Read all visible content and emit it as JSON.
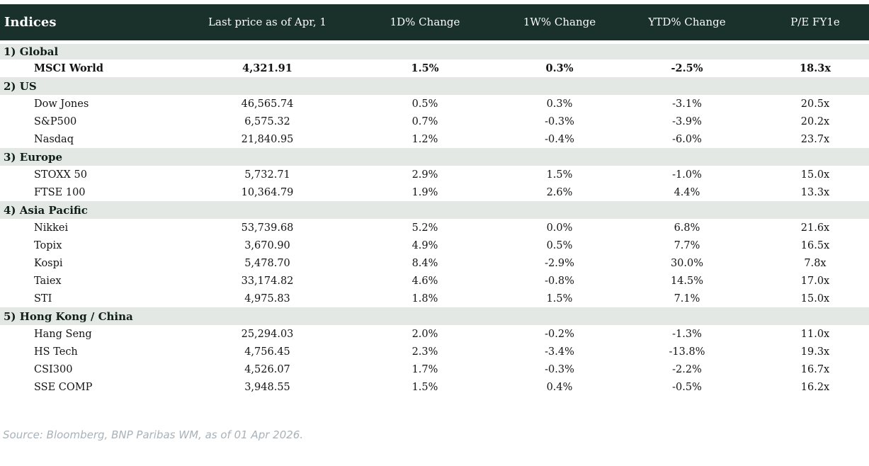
{
  "chart_data": {
    "type": "table",
    "title": "Indices",
    "first_column_header": "Indices",
    "columns": [
      "Last price as of Apr, 1",
      "1D% Change",
      "1W% Change",
      "YTD% Change",
      "P/E FY1e"
    ],
    "sections": [
      {
        "label": "1) Global",
        "rows": [
          {
            "name": "MSCI World",
            "bold": true,
            "price": "4,321.91",
            "chg_1d": {
              "v": "1.5%",
              "dir": "pos"
            },
            "chg_1w": {
              "v": "0.3%",
              "dir": "pos"
            },
            "chg_ytd": {
              "v": "-2.5%",
              "dir": "neg"
            },
            "pe": "18.3x"
          }
        ]
      },
      {
        "label": "2) US",
        "rows": [
          {
            "name": "Dow Jones",
            "bold": false,
            "price": "46,565.74",
            "chg_1d": {
              "v": "0.5%",
              "dir": "pos"
            },
            "chg_1w": {
              "v": "0.3%",
              "dir": "pos"
            },
            "chg_ytd": {
              "v": "-3.1%",
              "dir": "neg"
            },
            "pe": "20.5x"
          },
          {
            "name": "S&P500",
            "bold": false,
            "price": "6,575.32",
            "chg_1d": {
              "v": "0.7%",
              "dir": "pos"
            },
            "chg_1w": {
              "v": "-0.3%",
              "dir": "neg"
            },
            "chg_ytd": {
              "v": "-3.9%",
              "dir": "neg"
            },
            "pe": "20.2x"
          },
          {
            "name": "Nasdaq",
            "bold": false,
            "price": "21,840.95",
            "chg_1d": {
              "v": "1.2%",
              "dir": "pos"
            },
            "chg_1w": {
              "v": "-0.4%",
              "dir": "neg"
            },
            "chg_ytd": {
              "v": "-6.0%",
              "dir": "neg"
            },
            "pe": "23.7x"
          }
        ]
      },
      {
        "label": "3) Europe",
        "rows": [
          {
            "name": "STOXX 50",
            "bold": false,
            "price": "5,732.71",
            "chg_1d": {
              "v": "2.9%",
              "dir": "pos"
            },
            "chg_1w": {
              "v": "1.5%",
              "dir": "pos"
            },
            "chg_ytd": {
              "v": "-1.0%",
              "dir": "neg"
            },
            "pe": "15.0x"
          },
          {
            "name": "FTSE 100",
            "bold": false,
            "price": "10,364.79",
            "chg_1d": {
              "v": "1.9%",
              "dir": "pos"
            },
            "chg_1w": {
              "v": "2.6%",
              "dir": "pos"
            },
            "chg_ytd": {
              "v": "4.4%",
              "dir": "pos"
            },
            "pe": "13.3x"
          }
        ]
      },
      {
        "label": "4) Asia Pacific",
        "rows": [
          {
            "name": "Nikkei",
            "bold": false,
            "price": "53,739.68",
            "chg_1d": {
              "v": "5.2%",
              "dir": "pos"
            },
            "chg_1w": {
              "v": "0.0%",
              "dir": "neg"
            },
            "chg_ytd": {
              "v": "6.8%",
              "dir": "pos"
            },
            "pe": "21.6x"
          },
          {
            "name": "Topix",
            "bold": false,
            "price": "3,670.90",
            "chg_1d": {
              "v": "4.9%",
              "dir": "pos"
            },
            "chg_1w": {
              "v": "0.5%",
              "dir": "pos"
            },
            "chg_ytd": {
              "v": "7.7%",
              "dir": "pos"
            },
            "pe": "16.5x"
          },
          {
            "name": "Kospi",
            "bold": false,
            "price": "5,478.70",
            "chg_1d": {
              "v": "8.4%",
              "dir": "pos"
            },
            "chg_1w": {
              "v": "-2.9%",
              "dir": "neg"
            },
            "chg_ytd": {
              "v": "30.0%",
              "dir": "pos"
            },
            "pe": "7.8x"
          },
          {
            "name": "Taiex",
            "bold": false,
            "price": "33,174.82",
            "chg_1d": {
              "v": "4.6%",
              "dir": "pos"
            },
            "chg_1w": {
              "v": "-0.8%",
              "dir": "neg"
            },
            "chg_ytd": {
              "v": "14.5%",
              "dir": "pos"
            },
            "pe": "17.0x"
          },
          {
            "name": "STI",
            "bold": false,
            "price": "4,975.83",
            "chg_1d": {
              "v": "1.8%",
              "dir": "pos"
            },
            "chg_1w": {
              "v": "1.5%",
              "dir": "pos"
            },
            "chg_ytd": {
              "v": "7.1%",
              "dir": "pos"
            },
            "pe": "15.0x"
          }
        ]
      },
      {
        "label": "5) Hong Kong / China",
        "rows": [
          {
            "name": "Hang Seng",
            "bold": false,
            "price": "25,294.03",
            "chg_1d": {
              "v": "2.0%",
              "dir": "pos"
            },
            "chg_1w": {
              "v": "-0.2%",
              "dir": "neg"
            },
            "chg_ytd": {
              "v": "-1.3%",
              "dir": "neg"
            },
            "pe": "11.0x"
          },
          {
            "name": "HS Tech",
            "bold": false,
            "price": "4,756.45",
            "chg_1d": {
              "v": "2.3%",
              "dir": "pos"
            },
            "chg_1w": {
              "v": "-3.4%",
              "dir": "neg"
            },
            "chg_ytd": {
              "v": "-13.8%",
              "dir": "neg"
            },
            "pe": "19.3x"
          },
          {
            "name": "CSI300",
            "bold": false,
            "price": "4,526.07",
            "chg_1d": {
              "v": "1.7%",
              "dir": "pos"
            },
            "chg_1w": {
              "v": "-0.3%",
              "dir": "neg"
            },
            "chg_ytd": {
              "v": "-2.2%",
              "dir": "neg"
            },
            "pe": "16.7x"
          },
          {
            "name": "SSE COMP",
            "bold": false,
            "price": "3,948.55",
            "chg_1d": {
              "v": "1.5%",
              "dir": "pos"
            },
            "chg_1w": {
              "v": "0.4%",
              "dir": "pos"
            },
            "chg_ytd": {
              "v": "-0.5%",
              "dir": "neg"
            },
            "pe": "16.2x"
          }
        ]
      }
    ]
  },
  "footer": {
    "source": "Source: Bloomberg, BNP Paribas WM, as of 01 Apr 2026."
  },
  "colors": {
    "header_bg": "#1a312b",
    "header_text": "#fbfbfb",
    "section_bg": "#e3e8e4",
    "body_text": "#141414",
    "positive": "#008c00",
    "negative": "#b41420",
    "source_text": "#a9b2b9"
  }
}
